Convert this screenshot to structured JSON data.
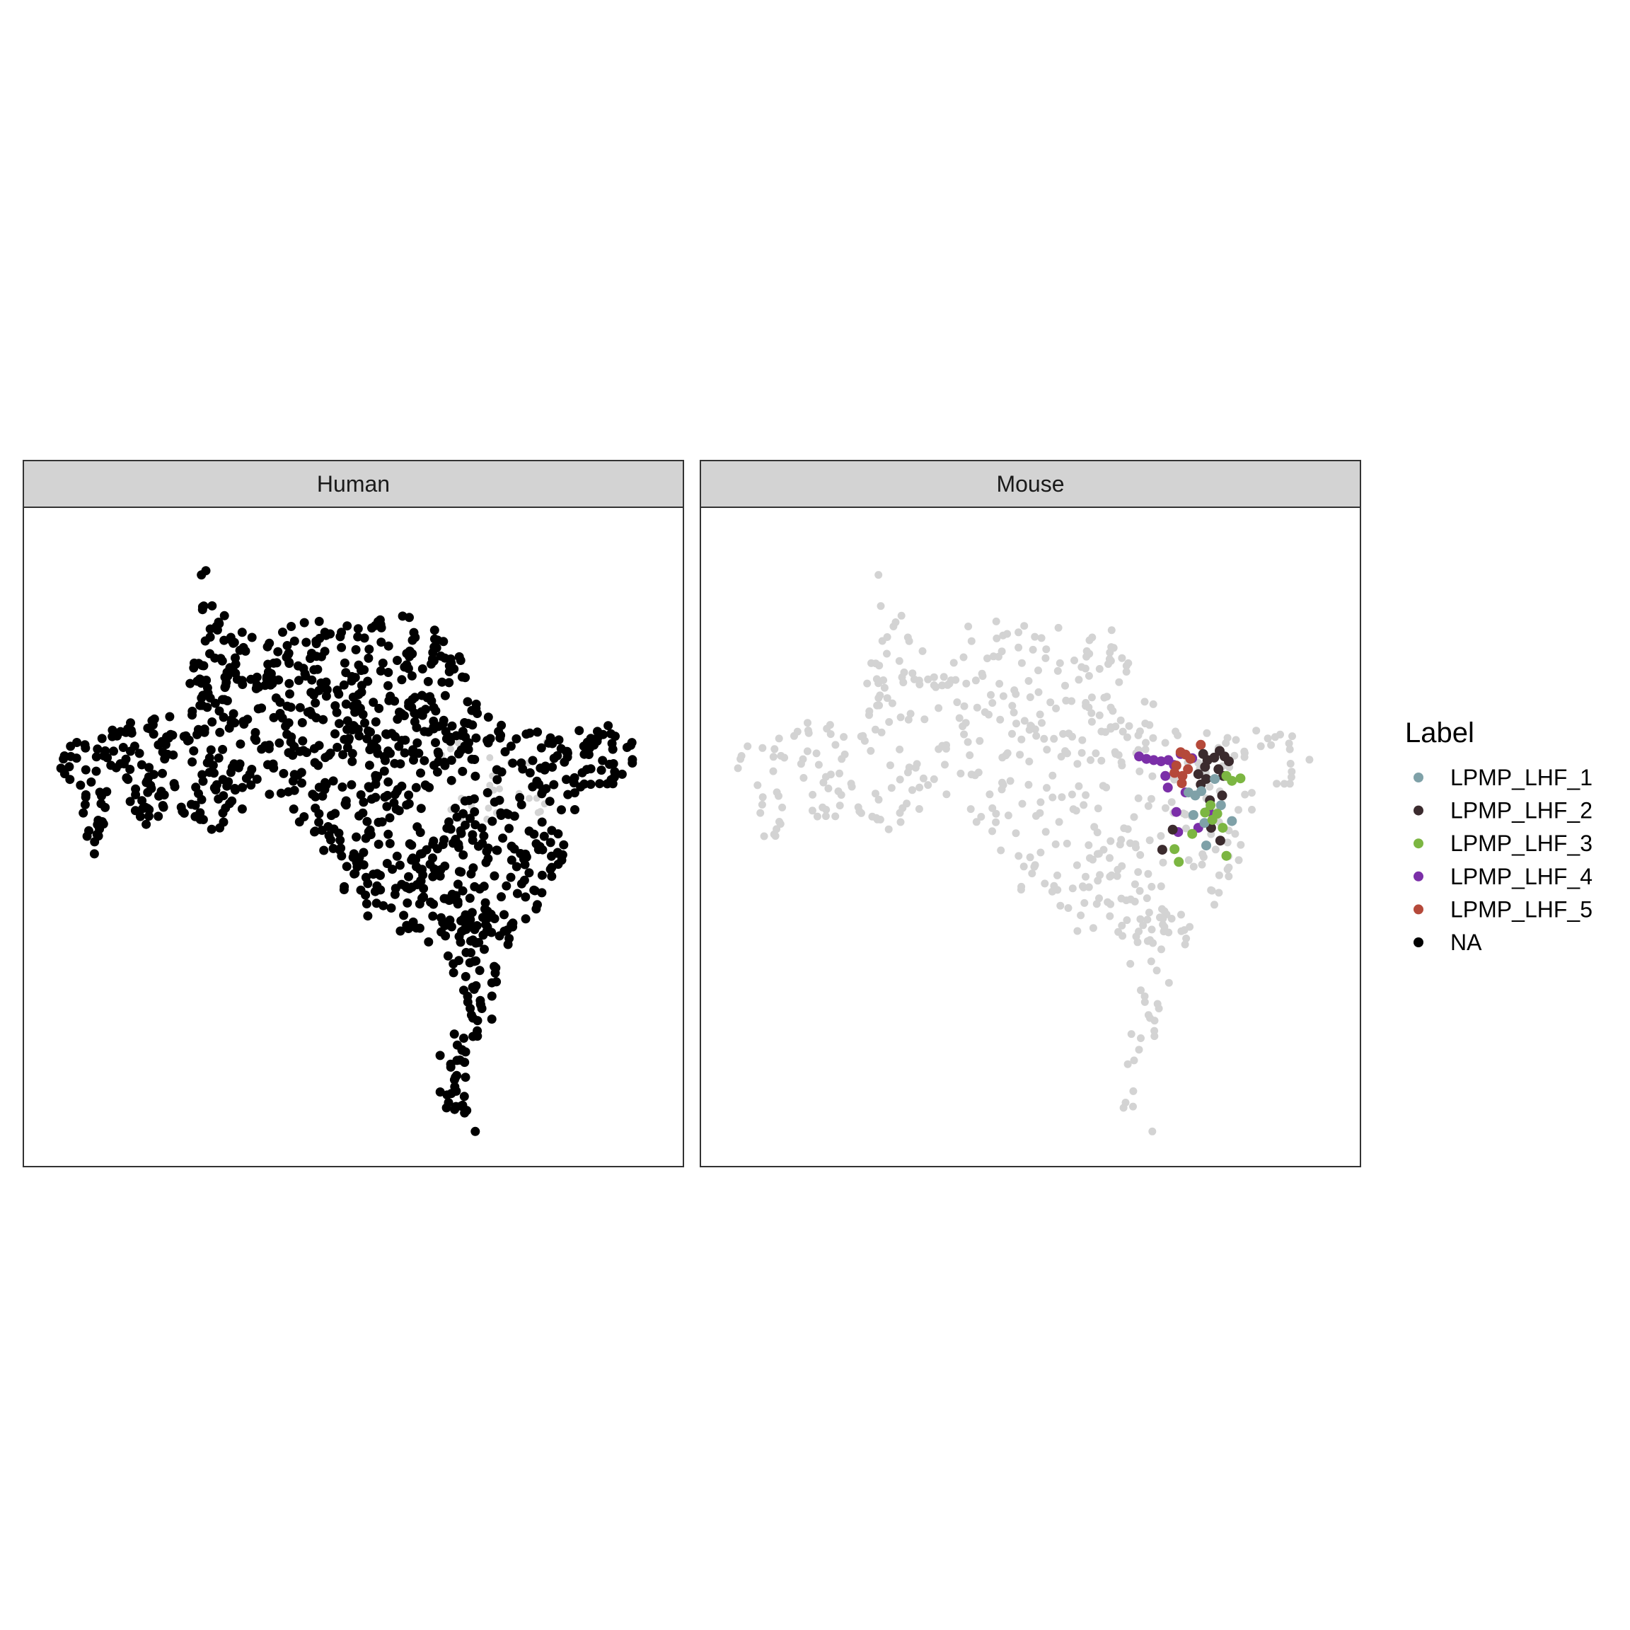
{
  "chart_data": {
    "type": "scatter",
    "facet_by": "species",
    "facets": [
      {
        "name": "Human",
        "highlight_color": "#000000"
      },
      {
        "name": "Mouse",
        "background_color": "#d3d3d3"
      }
    ],
    "axes_visible": false,
    "grid": false,
    "legend_position": "right",
    "legend": {
      "title": "Label",
      "entries": [
        {
          "label": "LPMP_LHF_1",
          "color": "#7fa1a8"
        },
        {
          "label": "LPMP_LHF_2",
          "color": "#3b2b2e"
        },
        {
          "label": "LPMP_LHF_3",
          "color": "#7cb642"
        },
        {
          "label": "LPMP_LHF_4",
          "color": "#7b2fa8"
        },
        {
          "label": "LPMP_LHF_5",
          "color": "#b5493a"
        },
        {
          "label": "NA",
          "color": "#000000"
        }
      ]
    },
    "xlim": [
      0,
      100
    ],
    "ylim": [
      0,
      100
    ],
    "embedding_outline": [
      [
        27.7,
        95.2
      ],
      [
        27.5,
        92.0
      ],
      [
        25.0,
        90.5
      ],
      [
        25.8,
        88.5
      ],
      [
        29.0,
        87.2
      ],
      [
        30.5,
        84.5
      ],
      [
        32.5,
        83.3
      ],
      [
        34.8,
        84.5
      ],
      [
        37.5,
        85.5
      ],
      [
        40.0,
        85.0
      ],
      [
        43.0,
        86.0
      ],
      [
        45.5,
        85.8
      ],
      [
        48.0,
        84.0
      ],
      [
        51.0,
        86.0
      ],
      [
        54.0,
        85.8
      ],
      [
        57.0,
        86.5
      ],
      [
        60.5,
        86.3
      ],
      [
        63.5,
        84.5
      ],
      [
        66.0,
        82.0
      ],
      [
        67.5,
        79.5
      ],
      [
        69.0,
        76.2
      ],
      [
        70.5,
        72.0
      ],
      [
        72.5,
        69.5
      ],
      [
        75.0,
        68.5
      ],
      [
        78.0,
        68.3
      ],
      [
        81.0,
        67.2
      ],
      [
        84.0,
        66.5
      ],
      [
        87.5,
        68.0
      ],
      [
        90.5,
        68.5
      ],
      [
        94.5,
        67.8
      ],
      [
        96.5,
        65.0
      ],
      [
        96.0,
        61.5
      ],
      [
        94.5,
        59.5
      ],
      [
        92.0,
        57.5
      ],
      [
        89.0,
        56.0
      ],
      [
        85.5,
        54.0
      ],
      [
        84.0,
        51.0
      ],
      [
        85.5,
        48.0
      ],
      [
        83.5,
        44.5
      ],
      [
        82.5,
        41.5
      ],
      [
        80.5,
        38.0
      ],
      [
        78.0,
        35.5
      ],
      [
        76.0,
        33.5
      ],
      [
        74.5,
        30.5
      ],
      [
        75.0,
        27.5
      ],
      [
        74.5,
        24.5
      ],
      [
        73.0,
        19.5
      ],
      [
        71.5,
        17.0
      ],
      [
        70.0,
        16.5
      ],
      [
        68.5,
        11.5
      ],
      [
        70.0,
        7.5
      ],
      [
        69.5,
        4.0
      ],
      [
        71.5,
        1.5
      ],
      [
        70.0,
        1.0
      ],
      [
        66.0,
        4.5
      ],
      [
        63.5,
        7.5
      ],
      [
        64.0,
        11.0
      ],
      [
        63.5,
        14.5
      ],
      [
        66.0,
        17.5
      ],
      [
        68.0,
        22.0
      ],
      [
        67.0,
        27.0
      ],
      [
        64.0,
        30.0
      ],
      [
        61.5,
        33.0
      ],
      [
        58.5,
        33.0
      ],
      [
        56.0,
        33.5
      ],
      [
        53.5,
        35.5
      ],
      [
        50.5,
        38.5
      ],
      [
        48.0,
        41.5
      ],
      [
        46.0,
        45.0
      ],
      [
        43.0,
        50.5
      ],
      [
        40.0,
        53.5
      ],
      [
        37.5,
        54.5
      ],
      [
        35.5,
        56.5
      ],
      [
        32.5,
        54.5
      ],
      [
        29.5,
        52.0
      ],
      [
        26.5,
        50.5
      ],
      [
        24.5,
        52.0
      ],
      [
        22.0,
        54.0
      ],
      [
        20.5,
        55.0
      ],
      [
        18.5,
        52.5
      ],
      [
        16.5,
        51.5
      ],
      [
        14.0,
        51.5
      ],
      [
        12.5,
        54.0
      ],
      [
        13.5,
        56.5
      ],
      [
        12.0,
        58.0
      ],
      [
        10.5,
        56.5
      ],
      [
        10.0,
        54.0
      ],
      [
        9.0,
        51.0
      ],
      [
        8.5,
        48.0
      ],
      [
        7.8,
        46.0
      ],
      [
        6.5,
        48.5
      ],
      [
        6.0,
        51.5
      ],
      [
        5.5,
        55.0
      ],
      [
        3.0,
        58.5
      ],
      [
        1.5,
        61.5
      ],
      [
        2.0,
        64.5
      ],
      [
        4.5,
        66.0
      ],
      [
        7.0,
        65.0
      ],
      [
        9.5,
        67.5
      ],
      [
        12.0,
        68.5
      ],
      [
        14.5,
        69.0
      ],
      [
        17.0,
        69.5
      ],
      [
        20.0,
        70.5
      ],
      [
        22.5,
        70.0
      ],
      [
        23.5,
        73.0
      ],
      [
        23.0,
        76.5
      ],
      [
        24.5,
        80.0
      ],
      [
        25.5,
        83.0
      ],
      [
        24.0,
        86.5
      ],
      [
        24.5,
        90.0
      ],
      [
        25.0,
        93.0
      ],
      [
        27.7,
        95.2
      ]
    ],
    "human_points_total_approx": 1100,
    "mouse_points_total_approx": 1100,
    "mouse_labeled_points": [
      {
        "x": 67.8,
        "y": 63.2,
        "label": "LPMP_LHF_4"
      },
      {
        "x": 69.0,
        "y": 62.8,
        "label": "LPMP_LHF_4"
      },
      {
        "x": 70.2,
        "y": 62.6,
        "label": "LPMP_LHF_4"
      },
      {
        "x": 71.4,
        "y": 62.4,
        "label": "LPMP_LHF_4"
      },
      {
        "x": 72.6,
        "y": 62.6,
        "label": "LPMP_LHF_4"
      },
      {
        "x": 73.5,
        "y": 61.8,
        "label": "LPMP_LHF_4"
      },
      {
        "x": 72.1,
        "y": 60.0,
        "label": "LPMP_LHF_4"
      },
      {
        "x": 74.6,
        "y": 63.6,
        "label": "LPMP_LHF_4"
      },
      {
        "x": 76.5,
        "y": 62.9,
        "label": "LPMP_LHF_4"
      },
      {
        "x": 72.5,
        "y": 58.1,
        "label": "LPMP_LHF_4"
      },
      {
        "x": 75.4,
        "y": 57.3,
        "label": "LPMP_LHF_4"
      },
      {
        "x": 73.9,
        "y": 54.1,
        "label": "LPMP_LHF_4"
      },
      {
        "x": 79.2,
        "y": 54.2,
        "label": "LPMP_LHF_4"
      },
      {
        "x": 77.5,
        "y": 51.5,
        "label": "LPMP_LHF_4"
      },
      {
        "x": 74.2,
        "y": 50.8,
        "label": "LPMP_LHF_4"
      },
      {
        "x": 74.6,
        "y": 63.9,
        "label": "LPMP_LHF_5"
      },
      {
        "x": 75.4,
        "y": 63.5,
        "label": "LPMP_LHF_5"
      },
      {
        "x": 76.2,
        "y": 62.8,
        "label": "LPMP_LHF_5"
      },
      {
        "x": 77.9,
        "y": 65.1,
        "label": "LPMP_LHF_5"
      },
      {
        "x": 73.9,
        "y": 61.7,
        "label": "LPMP_LHF_5"
      },
      {
        "x": 73.6,
        "y": 60.5,
        "label": "LPMP_LHF_5"
      },
      {
        "x": 74.9,
        "y": 60.0,
        "label": "LPMP_LHF_5"
      },
      {
        "x": 74.8,
        "y": 58.8,
        "label": "LPMP_LHF_5"
      },
      {
        "x": 75.8,
        "y": 61.1,
        "label": "LPMP_LHF_5"
      },
      {
        "x": 78.3,
        "y": 63.6,
        "label": "LPMP_LHF_2"
      },
      {
        "x": 79.0,
        "y": 62.6,
        "label": "LPMP_LHF_2"
      },
      {
        "x": 80.1,
        "y": 63.0,
        "label": "LPMP_LHF_2"
      },
      {
        "x": 81.0,
        "y": 64.1,
        "label": "LPMP_LHF_2"
      },
      {
        "x": 81.8,
        "y": 63.2,
        "label": "LPMP_LHF_2"
      },
      {
        "x": 82.5,
        "y": 62.4,
        "label": "LPMP_LHF_2"
      },
      {
        "x": 78.6,
        "y": 61.5,
        "label": "LPMP_LHF_2"
      },
      {
        "x": 77.5,
        "y": 60.3,
        "label": "LPMP_LHF_2"
      },
      {
        "x": 78.8,
        "y": 59.5,
        "label": "LPMP_LHF_2"
      },
      {
        "x": 77.9,
        "y": 58.6,
        "label": "LPMP_LHF_2"
      },
      {
        "x": 80.8,
        "y": 61.1,
        "label": "LPMP_LHF_2"
      },
      {
        "x": 81.6,
        "y": 60.0,
        "label": "LPMP_LHF_2"
      },
      {
        "x": 79.4,
        "y": 56.0,
        "label": "LPMP_LHF_2"
      },
      {
        "x": 81.4,
        "y": 56.8,
        "label": "LPMP_LHF_2"
      },
      {
        "x": 79.6,
        "y": 51.5,
        "label": "LPMP_LHF_2"
      },
      {
        "x": 73.3,
        "y": 51.2,
        "label": "LPMP_LHF_2"
      },
      {
        "x": 71.6,
        "y": 47.9,
        "label": "LPMP_LHF_2"
      },
      {
        "x": 81.1,
        "y": 49.4,
        "label": "LPMP_LHF_2"
      },
      {
        "x": 75.9,
        "y": 57.3,
        "label": "LPMP_LHF_1"
      },
      {
        "x": 77.0,
        "y": 56.8,
        "label": "LPMP_LHF_1"
      },
      {
        "x": 78.0,
        "y": 57.5,
        "label": "LPMP_LHF_1"
      },
      {
        "x": 80.2,
        "y": 59.5,
        "label": "LPMP_LHF_1"
      },
      {
        "x": 76.7,
        "y": 53.6,
        "label": "LPMP_LHF_1"
      },
      {
        "x": 78.5,
        "y": 52.3,
        "label": "LPMP_LHF_1"
      },
      {
        "x": 78.8,
        "y": 48.6,
        "label": "LPMP_LHF_1"
      },
      {
        "x": 83.0,
        "y": 52.6,
        "label": "LPMP_LHF_1"
      },
      {
        "x": 81.2,
        "y": 55.2,
        "label": "LPMP_LHF_1"
      },
      {
        "x": 82.1,
        "y": 60.0,
        "label": "LPMP_LHF_3"
      },
      {
        "x": 83.0,
        "y": 59.2,
        "label": "LPMP_LHF_3"
      },
      {
        "x": 84.4,
        "y": 59.6,
        "label": "LPMP_LHF_3"
      },
      {
        "x": 79.5,
        "y": 55.2,
        "label": "LPMP_LHF_3"
      },
      {
        "x": 78.6,
        "y": 54.0,
        "label": "LPMP_LHF_3"
      },
      {
        "x": 80.6,
        "y": 53.8,
        "label": "LPMP_LHF_3"
      },
      {
        "x": 81.5,
        "y": 51.5,
        "label": "LPMP_LHF_3"
      },
      {
        "x": 79.8,
        "y": 52.8,
        "label": "LPMP_LHF_3"
      },
      {
        "x": 76.5,
        "y": 50.5,
        "label": "LPMP_LHF_3"
      },
      {
        "x": 73.6,
        "y": 48.0,
        "label": "LPMP_LHF_3"
      },
      {
        "x": 74.3,
        "y": 45.9,
        "label": "LPMP_LHF_3"
      },
      {
        "x": 82.1,
        "y": 46.9,
        "label": "LPMP_LHF_3"
      }
    ]
  }
}
